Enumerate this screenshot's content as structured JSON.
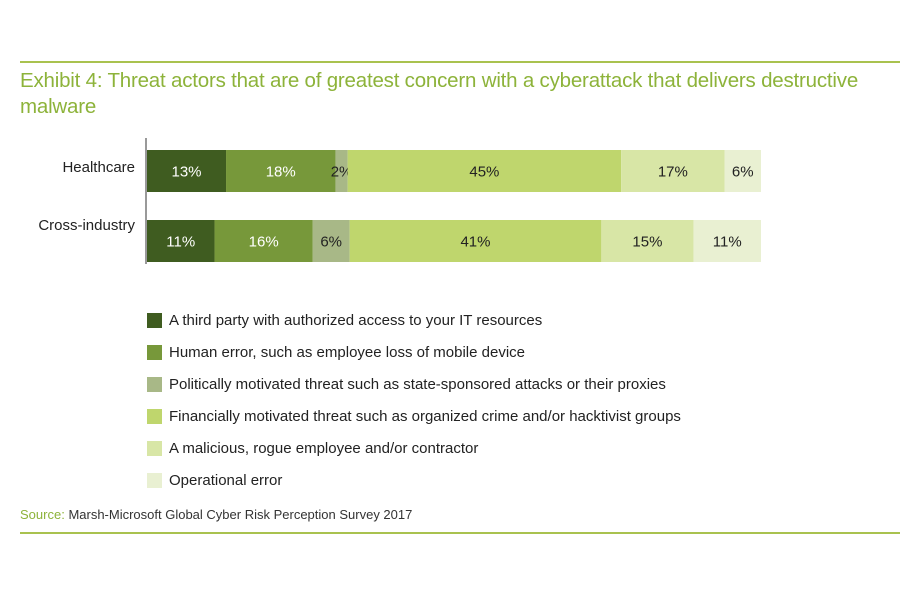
{
  "title": "Exhibit 4: Threat actors that are of greatest concern with a cyberattack that delivers destructive malware",
  "source_label": "Source:",
  "source_text": "Marsh-Microsoft Global Cyber Risk Perception Survey 2017",
  "colors": [
    "#3f5c20",
    "#77983a",
    "#a8b887",
    "#bfd66d",
    "#d8e6a6",
    "#e9f0d2"
  ],
  "legend": [
    "A third party with authorized access to your IT resources",
    "Human error, such as employee loss of mobile device",
    "Politically motivated threat such as state-sponsored attacks or their proxies",
    "Financially motivated threat such as organized crime and/or hacktivist groups",
    "A malicious, rogue employee and/or contractor",
    "Operational error"
  ],
  "chart_data": {
    "type": "bar",
    "orientation": "horizontal",
    "stacked": true,
    "categories": [
      "Healthcare",
      "Cross-industry"
    ],
    "series": [
      {
        "name": "A third party with authorized access to your IT resources",
        "values": [
          13,
          11
        ]
      },
      {
        "name": "Human error, such as employee loss of mobile device",
        "values": [
          18,
          16
        ]
      },
      {
        "name": "Politically motivated threat such as state-sponsored attacks or their proxies",
        "values": [
          2,
          6
        ]
      },
      {
        "name": "Financially motivated threat such as organized crime and/or hacktivist groups",
        "values": [
          45,
          41
        ]
      },
      {
        "name": "A malicious, rogue employee and/or contractor",
        "values": [
          17,
          15
        ]
      },
      {
        "name": "Operational error",
        "values": [
          6,
          11
        ]
      }
    ],
    "labels": [
      [
        "13%",
        "18%",
        "2%",
        "45%",
        "17%",
        "6%"
      ],
      [
        "11%",
        "16%",
        "6%",
        "41%",
        "15%",
        "11%"
      ]
    ],
    "legend_position": "bottom",
    "grid": false
  }
}
